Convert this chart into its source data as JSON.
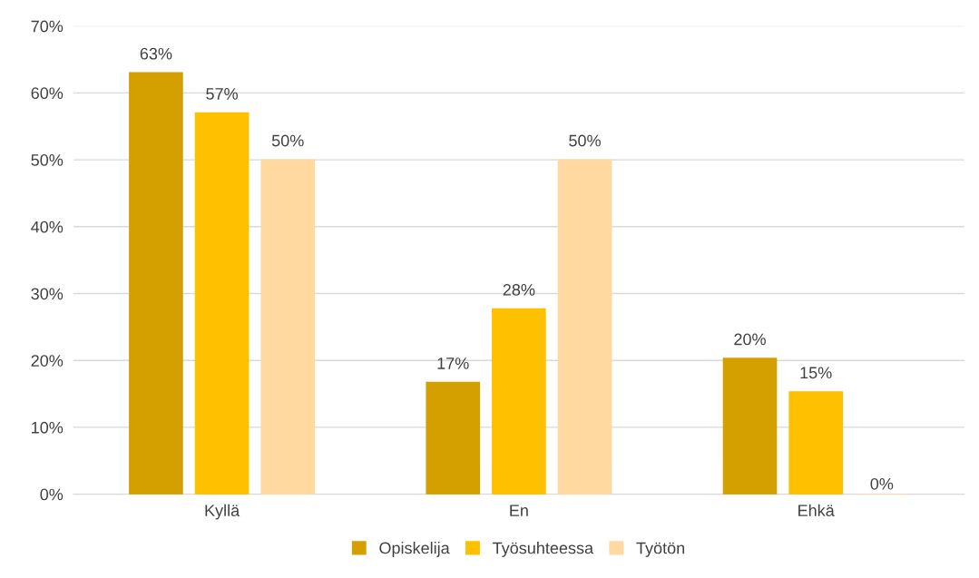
{
  "chart_data": {
    "type": "bar",
    "categories": [
      "Kyllä",
      "En",
      "Ehkä"
    ],
    "series": [
      {
        "name": "Opiskelija",
        "color": "#d4a000",
        "values": [
          63,
          16.7,
          20.3
        ],
        "value_labels": [
          "63%",
          "17%",
          "20%"
        ]
      },
      {
        "name": "Työsuhteessa",
        "color": "#ffc000",
        "values": [
          57,
          27.7,
          15.3
        ],
        "value_labels": [
          "57%",
          "28%",
          "15%"
        ]
      },
      {
        "name": "Työtön",
        "color": "#ffd9a0",
        "values": [
          50,
          50,
          0
        ],
        "value_labels": [
          "50%",
          "50%",
          "0%"
        ]
      }
    ],
    "ylim": [
      0,
      70
    ],
    "yticks": [
      {
        "value": 0,
        "label": "0%"
      },
      {
        "value": 10,
        "label": "10%"
      },
      {
        "value": 20,
        "label": "20%"
      },
      {
        "value": 30,
        "label": "30%"
      },
      {
        "value": 40,
        "label": "40%"
      },
      {
        "value": 50,
        "label": "50%"
      },
      {
        "value": 60,
        "label": "60%"
      },
      {
        "value": 70,
        "label": "70%"
      }
    ],
    "grid": "y",
    "legend": "bottom"
  }
}
